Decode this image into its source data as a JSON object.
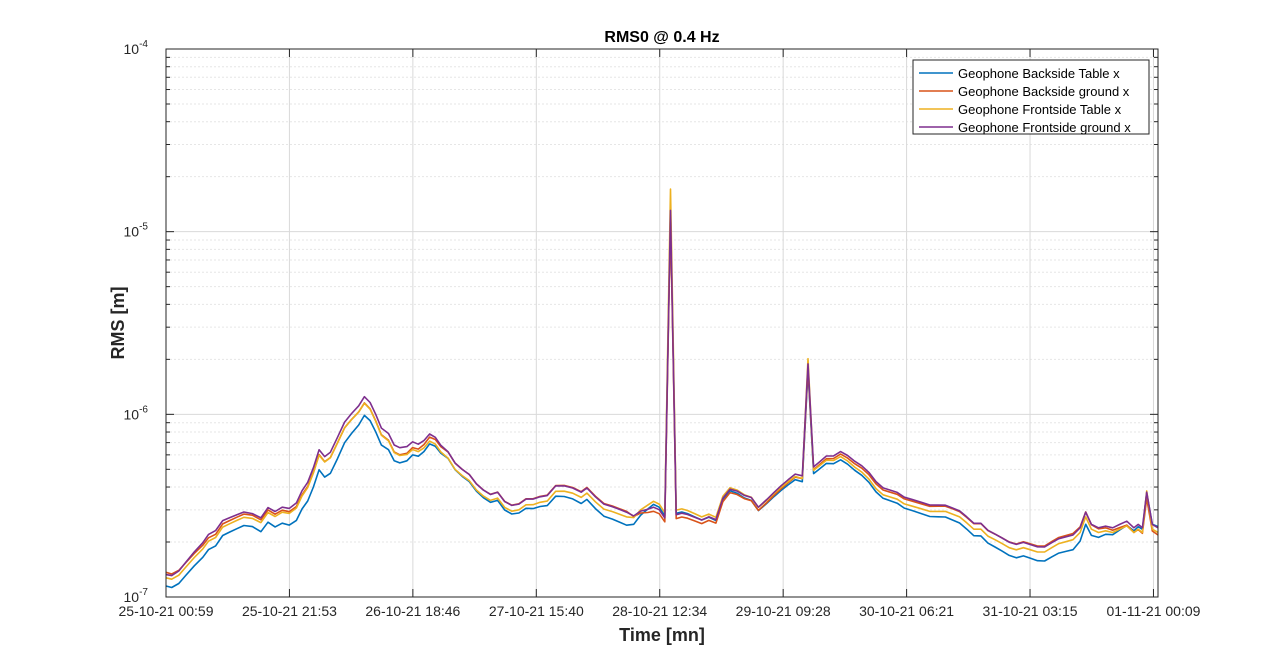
{
  "chart_data": {
    "type": "line",
    "title": "RMS0 @ 0.4 Hz",
    "xlabel": "Time [mn]",
    "ylabel": "RMS [m]",
    "xlim": [
      0,
      7
    ],
    "x_tick_values": [
      0,
      0.871,
      1.742,
      2.613,
      3.484,
      4.355,
      5.226,
      6.097,
      6.968
    ],
    "x_tick_labels": [
      "25-10-21 00:59",
      "25-10-21 21:53",
      "26-10-21 18:46",
      "27-10-21 15:40",
      "28-10-21 12:34",
      "29-10-21 09:28",
      "30-10-21 06:21",
      "31-10-21 03:15",
      "01-11-21 00:09"
    ],
    "yscale": "log",
    "ylim": [
      1e-07,
      0.0001
    ],
    "y_ticks": [
      {
        "value": 1e-07,
        "base": "10",
        "exp": "-7"
      },
      {
        "value": 1e-06,
        "base": "10",
        "exp": "-6"
      },
      {
        "value": 1e-05,
        "base": "10",
        "exp": "-5"
      },
      {
        "value": 0.0001,
        "base": "10",
        "exp": "-4"
      }
    ],
    "grid": true,
    "minor_grid": true,
    "legend_position": "top-right",
    "series": [
      {
        "name": "Geophone Backside Table x",
        "color": "#0072BD",
        "factor": 0.96,
        "offsets": [
          [
            0.0,
            0.92
          ],
          [
            0.33,
            0.9
          ],
          [
            0.61,
            0.92
          ],
          [
            1.19,
            0.85
          ],
          [
            1.68,
            0.9
          ],
          [
            2.0,
            1.0
          ],
          [
            3.25,
            0.92
          ],
          [
            3.43,
            1.08
          ],
          [
            5.0,
            0.98
          ],
          [
            6.4,
            0.9
          ],
          [
            7.0,
            1.1
          ]
        ]
      },
      {
        "name": "Geophone Backside ground x",
        "color": "#D95319",
        "factor": 1.0,
        "offsets": [
          [
            0.0,
            1.05
          ],
          [
            0.33,
            1.0
          ],
          [
            0.61,
            1.02
          ],
          [
            1.19,
            1.0
          ],
          [
            1.68,
            0.95
          ],
          [
            2.0,
            1.04
          ],
          [
            3.25,
            1.05
          ],
          [
            3.43,
            0.95
          ],
          [
            5.0,
            1.04
          ],
          [
            6.4,
            1.06
          ],
          [
            7.0,
            0.95
          ]
        ]
      },
      {
        "name": "Geophone Frontside Table x",
        "color": "#EDB120",
        "factor": 0.98,
        "offsets": [
          [
            0.0,
            1.0
          ],
          [
            0.33,
            0.98
          ],
          [
            0.61,
            1.0
          ],
          [
            1.19,
            1.02
          ],
          [
            1.68,
            0.96
          ],
          [
            2.0,
            0.98
          ],
          [
            3.25,
            1.0
          ],
          [
            3.43,
            1.1
          ],
          [
            5.0,
            1.0
          ],
          [
            6.4,
            1.0
          ],
          [
            7.0,
            1.0
          ]
        ]
      },
      {
        "name": "Geophone Frontside ground x",
        "color": "#7E2F8E",
        "factor": 1.02,
        "offsets": [
          [
            0.0,
            1.0
          ],
          [
            0.33,
            1.03
          ],
          [
            0.61,
            1.02
          ],
          [
            1.19,
            1.05
          ],
          [
            1.68,
            1.02
          ],
          [
            2.0,
            1.02
          ],
          [
            3.25,
            1.02
          ],
          [
            3.43,
            0.98
          ],
          [
            5.0,
            1.05
          ],
          [
            6.4,
            1.02
          ],
          [
            7.0,
            1.02
          ]
        ]
      }
    ],
    "base_curve": [
      [
        0.0,
        1.3e-07
      ],
      [
        0.04,
        1.28e-07
      ],
      [
        0.09,
        1.35e-07
      ],
      [
        0.14,
        1.5e-07
      ],
      [
        0.2,
        1.7e-07
      ],
      [
        0.26,
        1.9e-07
      ],
      [
        0.3,
        2.1e-07
      ],
      [
        0.35,
        2.2e-07
      ],
      [
        0.4,
        2.5e-07
      ],
      [
        0.45,
        2.6e-07
      ],
      [
        0.5,
        2.7e-07
      ],
      [
        0.55,
        2.8e-07
      ],
      [
        0.61,
        2.75e-07
      ],
      [
        0.67,
        2.6e-07
      ],
      [
        0.72,
        2.95e-07
      ],
      [
        0.77,
        2.8e-07
      ],
      [
        0.82,
        2.95e-07
      ],
      [
        0.87,
        2.9e-07
      ],
      [
        0.92,
        3.1e-07
      ],
      [
        0.96,
        3.6e-07
      ],
      [
        1.0,
        4e-07
      ],
      [
        1.04,
        4.8e-07
      ],
      [
        1.08,
        6e-07
      ],
      [
        1.12,
        5.5e-07
      ],
      [
        1.16,
        5.8e-07
      ],
      [
        1.21,
        7e-07
      ],
      [
        1.26,
        8.5e-07
      ],
      [
        1.31,
        9.5e-07
      ],
      [
        1.36,
        1.05e-06
      ],
      [
        1.4,
        1.18e-06
      ],
      [
        1.44,
        1.1e-06
      ],
      [
        1.48,
        9.5e-07
      ],
      [
        1.52,
        8e-07
      ],
      [
        1.57,
        7.5e-07
      ],
      [
        1.61,
        6.5e-07
      ],
      [
        1.65,
        6.3e-07
      ],
      [
        1.7,
        6.4e-07
      ],
      [
        1.74,
        6.8e-07
      ],
      [
        1.78,
        6.6e-07
      ],
      [
        1.82,
        6.9e-07
      ],
      [
        1.86,
        7.5e-07
      ],
      [
        1.9,
        7.2e-07
      ],
      [
        1.94,
        6.5e-07
      ],
      [
        1.99,
        6e-07
      ],
      [
        2.04,
        5.2e-07
      ],
      [
        2.09,
        4.8e-07
      ],
      [
        2.14,
        4.5e-07
      ],
      [
        2.19,
        4e-07
      ],
      [
        2.24,
        3.7e-07
      ],
      [
        2.29,
        3.5e-07
      ],
      [
        2.34,
        3.6e-07
      ],
      [
        2.39,
        3.2e-07
      ],
      [
        2.44,
        3.05e-07
      ],
      [
        2.49,
        3.1e-07
      ],
      [
        2.54,
        3.3e-07
      ],
      [
        2.59,
        3.3e-07
      ],
      [
        2.64,
        3.4e-07
      ],
      [
        2.69,
        3.45e-07
      ],
      [
        2.75,
        3.9e-07
      ],
      [
        2.81,
        3.9e-07
      ],
      [
        2.87,
        3.8e-07
      ],
      [
        2.93,
        3.6e-07
      ],
      [
        2.97,
        3.8e-07
      ],
      [
        3.03,
        3.4e-07
      ],
      [
        3.09,
        3.1e-07
      ],
      [
        3.15,
        3e-07
      ],
      [
        3.2,
        2.9e-07
      ],
      [
        3.25,
        2.8e-07
      ],
      [
        3.3,
        2.7e-07
      ],
      [
        3.35,
        2.9e-07
      ],
      [
        3.4,
        3e-07
      ],
      [
        3.44,
        3.1e-07
      ],
      [
        3.48,
        3e-07
      ],
      [
        3.52,
        2.7e-07
      ],
      [
        3.56,
        1.3e-05
      ],
      [
        3.6,
        2.8e-07
      ],
      [
        3.64,
        2.85e-07
      ],
      [
        3.68,
        2.8e-07
      ],
      [
        3.73,
        2.7e-07
      ],
      [
        3.78,
        2.6e-07
      ],
      [
        3.83,
        2.7e-07
      ],
      [
        3.88,
        2.6e-07
      ],
      [
        3.93,
        3.4e-07
      ],
      [
        3.98,
        3.8e-07
      ],
      [
        4.03,
        3.7e-07
      ],
      [
        4.08,
        3.5e-07
      ],
      [
        4.13,
        3.4e-07
      ],
      [
        4.18,
        3e-07
      ],
      [
        4.24,
        3.3e-07
      ],
      [
        4.29,
        3.6e-07
      ],
      [
        4.34,
        3.9e-07
      ],
      [
        4.39,
        4.2e-07
      ],
      [
        4.44,
        4.5e-07
      ],
      [
        4.49,
        4.4e-07
      ],
      [
        4.53,
        1.8e-06
      ],
      [
        4.57,
        4.9e-07
      ],
      [
        4.61,
        5.2e-07
      ],
      [
        4.66,
        5.6e-07
      ],
      [
        4.71,
        5.6e-07
      ],
      [
        4.76,
        5.9e-07
      ],
      [
        4.81,
        5.6e-07
      ],
      [
        4.86,
        5.2e-07
      ],
      [
        4.91,
        4.9e-07
      ],
      [
        4.96,
        4.5e-07
      ],
      [
        5.01,
        4e-07
      ],
      [
        5.06,
        3.7e-07
      ],
      [
        5.11,
        3.6e-07
      ],
      [
        5.16,
        3.5e-07
      ],
      [
        5.21,
        3.3e-07
      ],
      [
        5.27,
        3.2e-07
      ],
      [
        5.33,
        3.1e-07
      ],
      [
        5.39,
        3e-07
      ],
      [
        5.45,
        3e-07
      ],
      [
        5.5,
        3e-07
      ],
      [
        5.55,
        2.9e-07
      ],
      [
        5.6,
        2.8e-07
      ],
      [
        5.65,
        2.6e-07
      ],
      [
        5.7,
        2.4e-07
      ],
      [
        5.75,
        2.4e-07
      ],
      [
        5.8,
        2.2e-07
      ],
      [
        5.85,
        2.1e-07
      ],
      [
        5.9,
        2e-07
      ],
      [
        5.95,
        1.9e-07
      ],
      [
        6.0,
        1.85e-07
      ],
      [
        6.05,
        1.9e-07
      ],
      [
        6.1,
        1.85e-07
      ],
      [
        6.15,
        1.8e-07
      ],
      [
        6.2,
        1.8e-07
      ],
      [
        6.25,
        1.9e-07
      ],
      [
        6.3,
        2e-07
      ],
      [
        6.35,
        2.05e-07
      ],
      [
        6.4,
        2.1e-07
      ],
      [
        6.45,
        2.3e-07
      ],
      [
        6.49,
        2.8e-07
      ],
      [
        6.53,
        2.4e-07
      ],
      [
        6.58,
        2.3e-07
      ],
      [
        6.63,
        2.35e-07
      ],
      [
        6.68,
        2.3e-07
      ],
      [
        6.73,
        2.4e-07
      ],
      [
        6.78,
        2.5e-07
      ],
      [
        6.83,
        2.3e-07
      ],
      [
        6.86,
        2.4e-07
      ],
      [
        6.89,
        2.3e-07
      ],
      [
        6.92,
        3.6e-07
      ],
      [
        6.96,
        2.4e-07
      ],
      [
        7.0,
        2.3e-07
      ]
    ]
  }
}
